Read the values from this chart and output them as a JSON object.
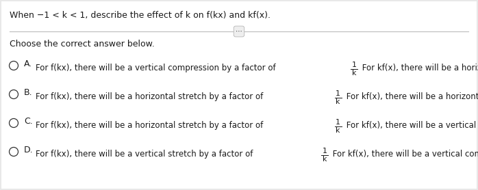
{
  "background_color": "#e8e8e8",
  "content_bg": "#ffffff",
  "title": "When −1 < k < 1, describe the effect of k on f(kx) and kf(x).",
  "subtitle": "Choose the correct answer below.",
  "options": [
    {
      "label": "A.",
      "text1": "For f(kx), there will be a vertical compression by a factor of ",
      "text2": " For kf(x), there will be a horizontal stretch by a factor of k."
    },
    {
      "label": "B.",
      "text1": "For f(kx), there will be a horizontal stretch by a factor of ",
      "text2": " For kf(x), there will be a horizontal compression by a factor of k."
    },
    {
      "label": "C.",
      "text1": "For f(kx), there will be a horizontal stretch by a factor of ",
      "text2": " For kf(x), there will be a vertical compression by a factor of k."
    },
    {
      "label": "D.",
      "text1": "For f(kx), there will be a vertical stretch by a factor of ",
      "text2": " For kf(x), there will be a vertical compression by a factor of k."
    }
  ],
  "title_fontsize": 9.0,
  "subtitle_fontsize": 9.0,
  "option_label_fontsize": 9.0,
  "option_text_fontsize": 8.5,
  "text_color": "#1a1a1a",
  "circle_color": "#333333",
  "line_color": "#bbbbbb",
  "dots_color": "#444444"
}
